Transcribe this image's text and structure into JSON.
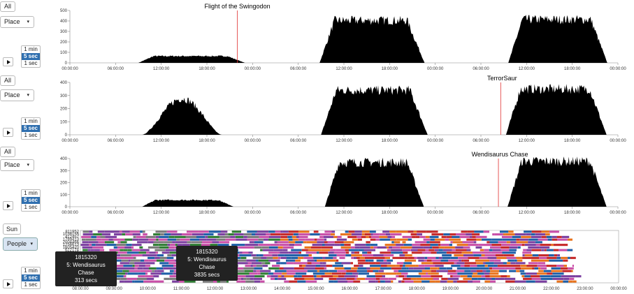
{
  "controls": {
    "all_label": "All",
    "place_label": "Place",
    "sun_label": "Sun",
    "people_label": "People",
    "caret": "▾",
    "resolutions": [
      "1 min",
      "5 sec",
      "1 sec"
    ],
    "selected_resolution": "5 sec"
  },
  "chart_data": [
    {
      "type": "area",
      "title": "Flight of the Swingodon",
      "ylim": [
        0,
        500
      ],
      "yticks": [
        0,
        100,
        200,
        300,
        400,
        500
      ],
      "xticks": [
        "00:00:00",
        "06:00:00",
        "12:00:00",
        "18:00:00",
        "00:00:00",
        "06:00:00",
        "12:00:00",
        "18:00:00",
        "00:00:00",
        "06:00:00",
        "12:00:00",
        "18:00:00",
        "00:00:00"
      ],
      "xlim_hours": [
        0,
        72
      ],
      "marker_hour": 22.0,
      "segments": [
        {
          "start": 9.0,
          "end": 23.0,
          "level": 70
        },
        {
          "start": 32.8,
          "end": 46.6,
          "level": 440
        },
        {
          "start": 57.6,
          "end": 70.6,
          "level": 450
        }
      ],
      "color": "#000000",
      "marker_color": "#e03030"
    },
    {
      "type": "area",
      "title": "TerrorSaur",
      "ylim": [
        0,
        400
      ],
      "yticks": [
        0,
        100,
        200,
        300,
        400
      ],
      "xticks": [
        "00:00:00",
        "06:00:00",
        "12:00:00",
        "18:00:00",
        "00:00:00",
        "06:00:00",
        "12:00:00",
        "18:00:00",
        "00:00:00",
        "06:00:00",
        "12:00:00",
        "18:00:00",
        "00:00:00"
      ],
      "xlim_hours": [
        0,
        72
      ],
      "marker_hour": 56.6,
      "segments": [
        {
          "start": 9.5,
          "end": 21.0,
          "level": 300,
          "peaked": true
        },
        {
          "start": 33.0,
          "end": 47.0,
          "level": 370
        },
        {
          "start": 57.3,
          "end": 70.5,
          "level": 380
        }
      ],
      "color": "#000000",
      "marker_color": "#e03030"
    },
    {
      "type": "area",
      "title": "Wendisaurus Chase",
      "ylim": [
        0,
        400
      ],
      "yticks": [
        0,
        100,
        200,
        300,
        400
      ],
      "xticks": [
        "00:00:00",
        "06:00:00",
        "12:00:00",
        "18:00:00",
        "00:00:00",
        "06:00:00",
        "12:00:00",
        "18:00:00",
        "00:00:00",
        "06:00:00",
        "12:00:00",
        "18:00:00",
        "00:00:00"
      ],
      "xlim_hours": [
        0,
        72
      ],
      "marker_hour": 56.3,
      "segments": [
        {
          "start": 9.5,
          "end": 21.5,
          "level": 60
        },
        {
          "start": 33.5,
          "end": 46.5,
          "level": 400
        },
        {
          "start": 57.5,
          "end": 70.5,
          "level": 410
        }
      ],
      "color": "#000000",
      "marker_color": "#e03030"
    },
    {
      "type": "heatmap",
      "row_labels": [
        "811952",
        "1038155",
        "412457",
        "1789413",
        "2004466",
        "1256613",
        "1605420",
        "622174",
        "931845",
        "1815320",
        "455098",
        "1722891",
        "390147",
        "1577602",
        "843219",
        "1290035",
        "1964410",
        "706298",
        "1143987",
        "1498226"
      ],
      "xticks": [
        "08:00:00",
        "09:00:00",
        "10:00:00",
        "11:00:00",
        "12:00:00",
        "13:00:00",
        "14:00:00",
        "15:00:00",
        "16:00:00",
        "17:00:00",
        "18:00:00",
        "19:00:00",
        "20:00:00",
        "21:00:00",
        "22:00:00",
        "23:00:00",
        "00:00:00"
      ],
      "palette": [
        "#7b3fa0",
        "#c94fa8",
        "#e8731c",
        "#c62828",
        "#1e5fa8",
        "#ffffff",
        "#2e7d32",
        "#7a7a7a"
      ],
      "tooltips": [
        {
          "id": "1815320",
          "place": "5: Wendisaurus Chase",
          "duration": "313 secs"
        },
        {
          "id": "1815320",
          "place": "5: Wendisaurus Chase",
          "duration": "3835 secs"
        }
      ]
    }
  ]
}
